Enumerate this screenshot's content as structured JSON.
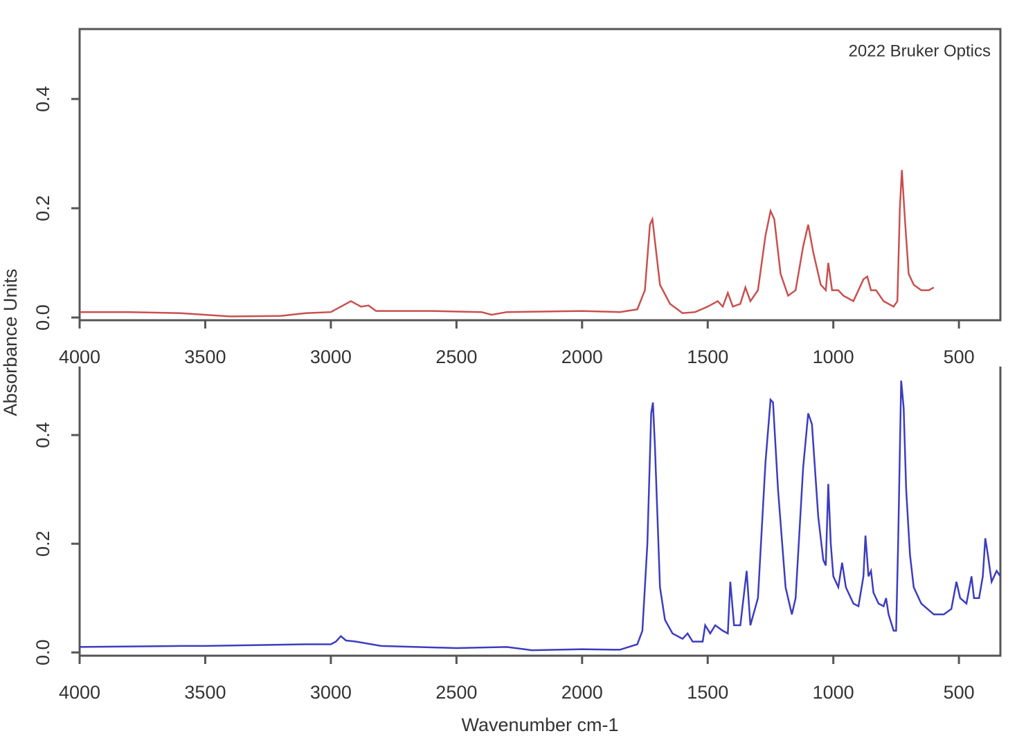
{
  "chart_data": [
    {
      "type": "line",
      "annotation": "2022 Bruker Optics",
      "ylabel": "Absorbance Units",
      "x": [
        4000,
        3800,
        3600,
        3400,
        3200,
        3100,
        3000,
        2960,
        2920,
        2880,
        2850,
        2820,
        2600,
        2400,
        2360,
        2300,
        2000,
        1850,
        1780,
        1750,
        1730,
        1720,
        1710,
        1690,
        1650,
        1600,
        1550,
        1500,
        1460,
        1440,
        1420,
        1400,
        1370,
        1350,
        1330,
        1300,
        1270,
        1250,
        1235,
        1210,
        1180,
        1150,
        1120,
        1100,
        1080,
        1050,
        1030,
        1020,
        1005,
        980,
        960,
        920,
        880,
        865,
        850,
        830,
        800,
        760,
        745,
        735,
        727,
        715,
        700,
        680,
        650,
        620,
        600
      ],
      "series": [
        {
          "color": "#c8504e",
          "values": [
            0.01,
            0.01,
            0.008,
            0.002,
            0.003,
            0.008,
            0.01,
            0.02,
            0.03,
            0.02,
            0.022,
            0.012,
            0.012,
            0.01,
            0.005,
            0.01,
            0.012,
            0.01,
            0.015,
            0.05,
            0.17,
            0.18,
            0.14,
            0.06,
            0.025,
            0.008,
            0.01,
            0.02,
            0.03,
            0.02,
            0.045,
            0.02,
            0.025,
            0.055,
            0.03,
            0.05,
            0.15,
            0.195,
            0.18,
            0.08,
            0.04,
            0.05,
            0.13,
            0.17,
            0.12,
            0.06,
            0.05,
            0.1,
            0.05,
            0.05,
            0.04,
            0.03,
            0.07,
            0.075,
            0.05,
            0.05,
            0.03,
            0.02,
            0.03,
            0.2,
            0.27,
            0.18,
            0.08,
            0.06,
            0.05,
            0.05,
            0.055
          ]
        }
      ],
      "xlim": [
        4000,
        335
      ],
      "ylim": [
        -0.005,
        0.528
      ],
      "xticks": [
        4000,
        3500,
        3000,
        2500,
        2000,
        1500,
        1000,
        500
      ],
      "yticks": [
        {
          "value": 0,
          "label": "0.0"
        },
        0.2,
        0.4
      ]
    },
    {
      "type": "line",
      "xlabel": "Wavenumber cm-1",
      "x": [
        4000,
        3600,
        3500,
        3100,
        3000,
        2980,
        2960,
        2940,
        2900,
        2800,
        2500,
        2300,
        2200,
        2000,
        1850,
        1780,
        1760,
        1740,
        1725,
        1718,
        1710,
        1690,
        1670,
        1640,
        1600,
        1580,
        1560,
        1520,
        1510,
        1490,
        1470,
        1440,
        1420,
        1410,
        1395,
        1370,
        1345,
        1330,
        1300,
        1270,
        1250,
        1240,
        1220,
        1190,
        1165,
        1150,
        1120,
        1100,
        1085,
        1060,
        1040,
        1030,
        1020,
        1010,
        1000,
        980,
        965,
        950,
        920,
        900,
        880,
        872,
        860,
        850,
        840,
        820,
        800,
        790,
        780,
        760,
        750,
        742,
        730,
        720,
        710,
        695,
        680,
        650,
        600,
        560,
        530,
        510,
        495,
        470,
        450,
        440,
        420,
        405,
        395,
        385,
        370,
        350,
        335
      ],
      "series": [
        {
          "color": "#3c3cc0",
          "values": [
            0.01,
            0.012,
            0.012,
            0.015,
            0.015,
            0.02,
            0.03,
            0.022,
            0.02,
            0.012,
            0.008,
            0.01,
            0.004,
            0.006,
            0.005,
            0.015,
            0.04,
            0.2,
            0.44,
            0.46,
            0.38,
            0.12,
            0.06,
            0.035,
            0.025,
            0.035,
            0.02,
            0.02,
            0.05,
            0.035,
            0.05,
            0.04,
            0.035,
            0.13,
            0.05,
            0.05,
            0.15,
            0.05,
            0.1,
            0.35,
            0.465,
            0.46,
            0.3,
            0.12,
            0.07,
            0.1,
            0.34,
            0.44,
            0.42,
            0.25,
            0.17,
            0.16,
            0.31,
            0.2,
            0.14,
            0.12,
            0.165,
            0.12,
            0.09,
            0.085,
            0.14,
            0.215,
            0.14,
            0.15,
            0.11,
            0.09,
            0.085,
            0.1,
            0.07,
            0.04,
            0.04,
            0.2,
            0.5,
            0.45,
            0.3,
            0.18,
            0.12,
            0.09,
            0.07,
            0.07,
            0.08,
            0.13,
            0.1,
            0.09,
            0.14,
            0.1,
            0.1,
            0.14,
            0.21,
            0.18,
            0.13,
            0.15,
            0.14
          ]
        }
      ],
      "xlim": [
        4000,
        335
      ],
      "ylim": [
        -0.006,
        0.526
      ],
      "xticks": [
        4000,
        3500,
        3000,
        2500,
        2000,
        1500,
        1000,
        500
      ],
      "yticks": [
        {
          "value": 0,
          "label": "0.0"
        },
        0.2,
        0.4
      ]
    }
  ]
}
